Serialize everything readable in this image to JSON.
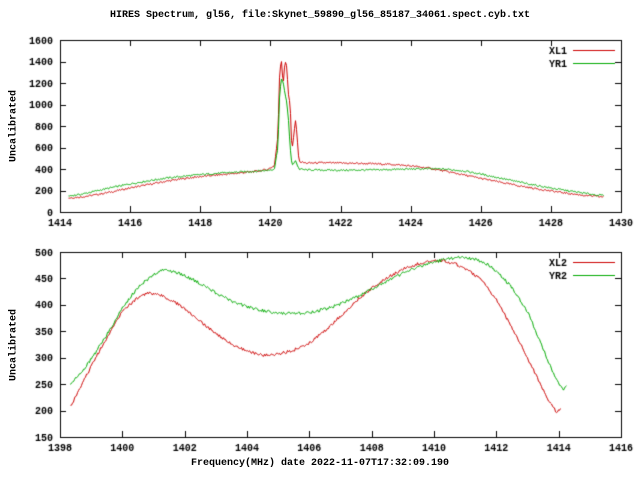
{
  "figure": {
    "title": "HIRES Spectrum, gl56, file:Skynet_59890_gl56_85187_34061.spect.cyb.txt",
    "xlabel": "Frequency(MHz) date 2022-11-07T17:32:09.190",
    "background": "#ffffff",
    "frame_color": "#000000",
    "text_color": "#000000"
  },
  "chart_data": [
    {
      "type": "line",
      "ylabel": "Uncalibrated",
      "xlim": [
        1414,
        1430
      ],
      "ylim": [
        0,
        1600
      ],
      "xticks": [
        1414,
        1416,
        1418,
        1420,
        1422,
        1424,
        1426,
        1428,
        1430
      ],
      "yticks": [
        0,
        200,
        400,
        600,
        800,
        1000,
        1200,
        1400,
        1600
      ],
      "grid": false,
      "legend_position": "top-right",
      "noise": 0.005,
      "series": [
        {
          "name": "XL1",
          "color": "#cc0000",
          "points": [
            [
              1414.2,
              130
            ],
            [
              1414.6,
              140
            ],
            [
              1415,
              160
            ],
            [
              1415.5,
              190
            ],
            [
              1416,
              225
            ],
            [
              1416.5,
              255
            ],
            [
              1417,
              285
            ],
            [
              1417.5,
              310
            ],
            [
              1418,
              330
            ],
            [
              1418.5,
              345
            ],
            [
              1419,
              360
            ],
            [
              1419.5,
              375
            ],
            [
              1419.9,
              395
            ],
            [
              1420.1,
              430
            ],
            [
              1420.2,
              700
            ],
            [
              1420.25,
              1300
            ],
            [
              1420.3,
              1420
            ],
            [
              1420.35,
              1180
            ],
            [
              1420.4,
              1400
            ],
            [
              1420.45,
              1360
            ],
            [
              1420.5,
              1100
            ],
            [
              1420.55,
              1000
            ],
            [
              1420.6,
              560
            ],
            [
              1420.65,
              700
            ],
            [
              1420.7,
              860
            ],
            [
              1420.75,
              700
            ],
            [
              1420.8,
              470
            ],
            [
              1421,
              455
            ],
            [
              1421.5,
              458
            ],
            [
              1422,
              455
            ],
            [
              1422.5,
              452
            ],
            [
              1423,
              448
            ],
            [
              1423.5,
              442
            ],
            [
              1424,
              428
            ],
            [
              1424.5,
              408
            ],
            [
              1425,
              378
            ],
            [
              1425.5,
              345
            ],
            [
              1426,
              312
            ],
            [
              1426.5,
              280
            ],
            [
              1427,
              248
            ],
            [
              1427.5,
              220
            ],
            [
              1428,
              195
            ],
            [
              1428.5,
              172
            ],
            [
              1429,
              152
            ],
            [
              1429.5,
              140
            ]
          ]
        },
        {
          "name": "YR1",
          "color": "#00aa00",
          "points": [
            [
              1414.2,
              148
            ],
            [
              1414.6,
              165
            ],
            [
              1415,
              195
            ],
            [
              1415.5,
              230
            ],
            [
              1416,
              262
            ],
            [
              1416.5,
              290
            ],
            [
              1417,
              315
            ],
            [
              1417.5,
              332
            ],
            [
              1418,
              348
            ],
            [
              1418.5,
              360
            ],
            [
              1419,
              370
            ],
            [
              1419.5,
              378
            ],
            [
              1419.9,
              388
            ],
            [
              1420.1,
              400
            ],
            [
              1420.2,
              600
            ],
            [
              1420.25,
              1100
            ],
            [
              1420.3,
              1230
            ],
            [
              1420.35,
              1220
            ],
            [
              1420.4,
              1100
            ],
            [
              1420.45,
              1020
            ],
            [
              1420.5,
              870
            ],
            [
              1420.55,
              600
            ],
            [
              1420.6,
              430
            ],
            [
              1420.7,
              480
            ],
            [
              1420.8,
              400
            ],
            [
              1421,
              392
            ],
            [
              1421.5,
              390
            ],
            [
              1422,
              388
            ],
            [
              1422.5,
              390
            ],
            [
              1423,
              392
            ],
            [
              1423.5,
              396
            ],
            [
              1424,
              400
            ],
            [
              1424.5,
              402
            ],
            [
              1425,
              398
            ],
            [
              1425.5,
              382
            ],
            [
              1426,
              352
            ],
            [
              1426.5,
              318
            ],
            [
              1427,
              284
            ],
            [
              1427.5,
              252
            ],
            [
              1428,
              222
            ],
            [
              1428.5,
              196
            ],
            [
              1429,
              172
            ],
            [
              1429.3,
              158
            ],
            [
              1429.5,
              155
            ]
          ]
        }
      ]
    },
    {
      "type": "line",
      "ylabel": "Uncalibrated",
      "xlim": [
        1398,
        1416
      ],
      "ylim": [
        150,
        500
      ],
      "xticks": [
        1398,
        1400,
        1402,
        1404,
        1406,
        1408,
        1410,
        1412,
        1414,
        1416
      ],
      "yticks": [
        150,
        200,
        250,
        300,
        350,
        400,
        450,
        500
      ],
      "grid": false,
      "legend_position": "top-right",
      "noise": 0.008,
      "series": [
        {
          "name": "XL2",
          "color": "#cc0000",
          "points": [
            [
              1398.3,
              205
            ],
            [
              1398.6,
              240
            ],
            [
              1399,
              285
            ],
            [
              1399.5,
              340
            ],
            [
              1400,
              388
            ],
            [
              1400.4,
              410
            ],
            [
              1400.8,
              422
            ],
            [
              1401.2,
              418
            ],
            [
              1401.6,
              408
            ],
            [
              1402,
              392
            ],
            [
              1402.5,
              368
            ],
            [
              1403,
              345
            ],
            [
              1403.5,
              325
            ],
            [
              1404,
              312
            ],
            [
              1404.5,
              305
            ],
            [
              1405,
              307
            ],
            [
              1405.5,
              315
            ],
            [
              1406,
              328
            ],
            [
              1406.5,
              352
            ],
            [
              1407,
              380
            ],
            [
              1407.5,
              408
            ],
            [
              1408,
              432
            ],
            [
              1408.5,
              452
            ],
            [
              1409,
              468
            ],
            [
              1409.5,
              478
            ],
            [
              1409.9,
              484
            ],
            [
              1410.3,
              483
            ],
            [
              1410.7,
              477
            ],
            [
              1411,
              468
            ],
            [
              1411.5,
              448
            ],
            [
              1412,
              408
            ],
            [
              1412.5,
              355
            ],
            [
              1413,
              298
            ],
            [
              1413.4,
              250
            ],
            [
              1413.7,
              215
            ],
            [
              1413.9,
              198
            ],
            [
              1414.05,
              202
            ]
          ]
        },
        {
          "name": "YR2",
          "color": "#00aa00",
          "points": [
            [
              1398.3,
              248
            ],
            [
              1398.6,
              268
            ],
            [
              1399,
              298
            ],
            [
              1399.5,
              345
            ],
            [
              1400,
              395
            ],
            [
              1400.5,
              435
            ],
            [
              1401,
              458
            ],
            [
              1401.3,
              466
            ],
            [
              1401.7,
              462
            ],
            [
              1402,
              455
            ],
            [
              1402.5,
              440
            ],
            [
              1403,
              422
            ],
            [
              1403.5,
              407
            ],
            [
              1404,
              396
            ],
            [
              1404.5,
              389
            ],
            [
              1405,
              385
            ],
            [
              1405.5,
              383
            ],
            [
              1406,
              386
            ],
            [
              1406.5,
              392
            ],
            [
              1407,
              402
            ],
            [
              1407.5,
              415
            ],
            [
              1408,
              430
            ],
            [
              1408.5,
              446
            ],
            [
              1409,
              460
            ],
            [
              1409.5,
              472
            ],
            [
              1410,
              481
            ],
            [
              1410.5,
              488
            ],
            [
              1410.9,
              490
            ],
            [
              1411.3,
              486
            ],
            [
              1411.7,
              477
            ],
            [
              1412,
              463
            ],
            [
              1412.5,
              432
            ],
            [
              1413,
              385
            ],
            [
              1413.4,
              330
            ],
            [
              1413.7,
              285
            ],
            [
              1414,
              250
            ],
            [
              1414.15,
              240
            ],
            [
              1414.25,
              248
            ]
          ]
        }
      ]
    }
  ]
}
